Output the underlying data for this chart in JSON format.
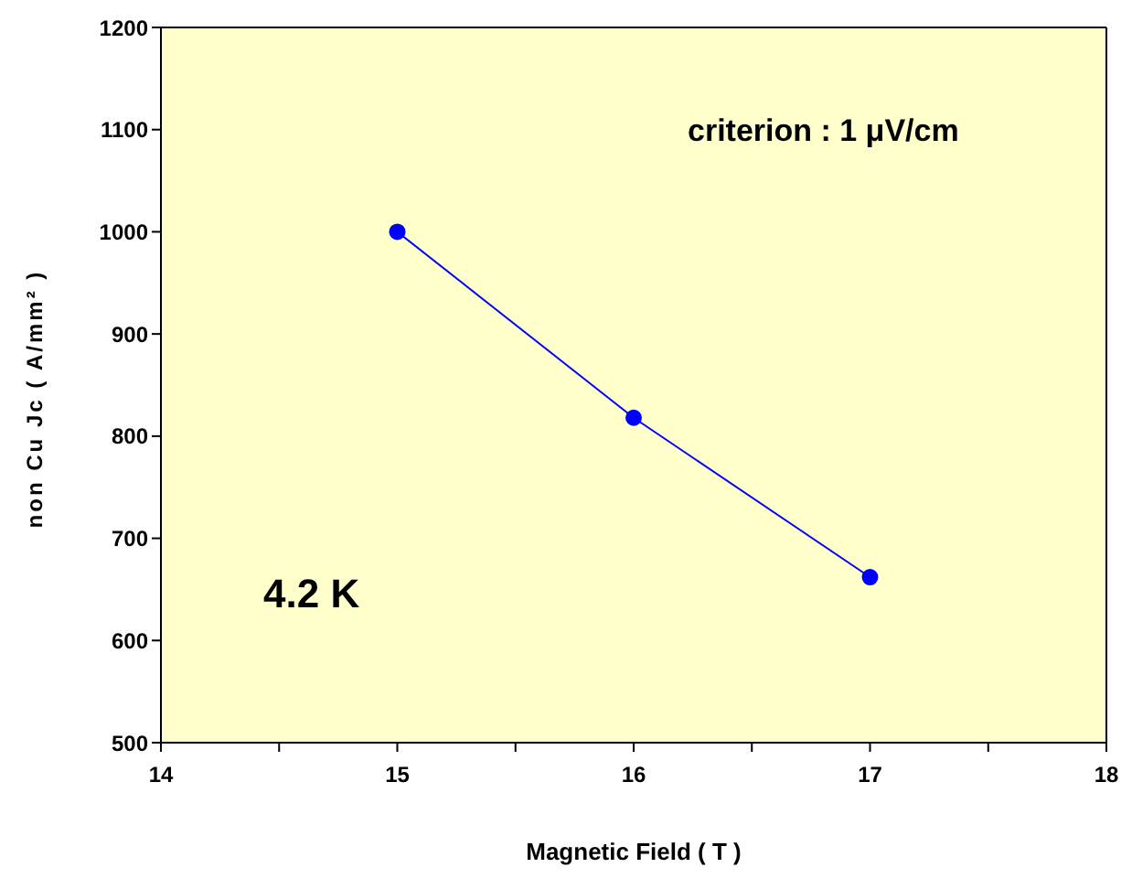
{
  "chart_data": {
    "type": "line",
    "xlabel": "Magnetic Field ( T )",
    "ylabel": "non Cu Jc ( A/mm² )",
    "annotations": [
      "criterion : 1 μV/cm",
      "4.2 K"
    ],
    "x": [
      15,
      16,
      17
    ],
    "series": [
      {
        "color": "#0000ff",
        "values": [
          1000,
          818,
          662
        ]
      }
    ],
    "xlim": [
      14,
      18
    ],
    "xticks": [
      14,
      {
        "value": 14.5,
        "label": null
      },
      15,
      {
        "value": 15.5,
        "label": null
      },
      16,
      {
        "value": 16.5,
        "label": null
      },
      17,
      {
        "value": 17.5,
        "label": null
      },
      18
    ],
    "ylim": [
      500,
      1200
    ],
    "yticks": [
      500,
      600,
      700,
      800,
      900,
      1000,
      1100,
      1200
    ],
    "grid": false,
    "legend": false,
    "marker": "circle",
    "line_style": "solid"
  }
}
